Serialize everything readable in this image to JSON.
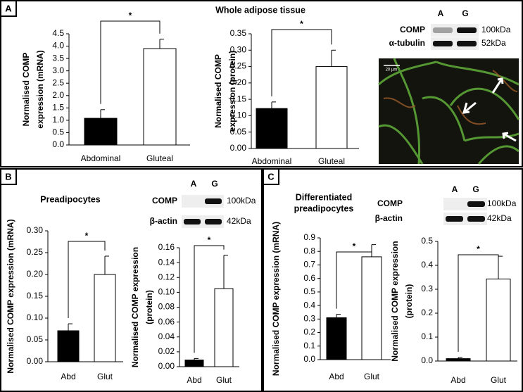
{
  "panels": [
    {
      "label": "A",
      "title": [
        "Whole adipose tissue"
      ],
      "blot": {
        "lanes": [
          "A",
          "G"
        ],
        "rows": [
          {
            "protein": "COMP",
            "size": "100kDa"
          },
          {
            "protein": "α-tubulin",
            "size": "52kDa"
          }
        ]
      },
      "scale_bar": "20 µm"
    },
    {
      "label": "B",
      "title": [
        "Preadipocytes"
      ],
      "blot": {
        "lanes": [
          "A",
          "G"
        ],
        "rows": [
          {
            "protein": "COMP",
            "size": "100kDa"
          },
          {
            "protein": "β-actin",
            "size": "42kDa"
          }
        ]
      }
    },
    {
      "label": "C",
      "title": [
        "Differentiated",
        "preadipocytes"
      ],
      "blot": {
        "lanes": [
          "A",
          "G"
        ],
        "rows": [
          {
            "protein": "COMP",
            "size": "100kDa"
          },
          {
            "protein": "β-actin",
            "size": "42kDa"
          }
        ]
      }
    }
  ],
  "chart_data": [
    {
      "type": "bar",
      "categories": [
        "Abdominal",
        "Gluteal"
      ],
      "values": [
        1.08,
        3.9
      ],
      "errors": [
        0.35,
        0.38
      ],
      "colors": [
        "#000000",
        "#ffffff"
      ],
      "ylabel": [
        "Normalised COMP",
        "expression (mRNA)"
      ],
      "annotation": "*",
      "ylim": [
        0,
        4.5
      ],
      "yticks": [
        {
          "value": 0,
          "label": "0.0"
        },
        0.5,
        {
          "value": 1,
          "label": "1.0"
        },
        1.5,
        {
          "value": 2,
          "label": "2.0"
        },
        2.5,
        {
          "value": 3,
          "label": "3.0"
        },
        3.5,
        {
          "value": 4,
          "label": "4.0"
        },
        4.5
      ]
    },
    {
      "type": "bar",
      "categories": [
        "Abdominal",
        "Gluteal"
      ],
      "values": [
        0.122,
        0.25
      ],
      "errors": [
        0.02,
        0.05
      ],
      "colors": [
        "#000000",
        "#ffffff"
      ],
      "ylabel": [
        "Normalised COMP",
        "expression (protein)"
      ],
      "annotation": "*",
      "ylim": [
        0,
        0.35
      ],
      "yticks": [
        {
          "value": 0,
          "label": "0.00"
        },
        0.05,
        {
          "value": 0.1,
          "label": "0.10"
        },
        0.15,
        {
          "value": 0.2,
          "label": "0.20"
        },
        0.25,
        {
          "value": 0.3,
          "label": "0.30"
        },
        0.35
      ]
    },
    {
      "type": "bar",
      "categories": [
        "Abd",
        "Glut"
      ],
      "values": [
        0.071,
        0.2
      ],
      "errors": [
        0.016,
        0.042
      ],
      "colors": [
        "#000000",
        "#ffffff"
      ],
      "ylabel": [
        "Normalised COMP expression (mRNA)"
      ],
      "annotation": "*",
      "ylim": [
        0,
        0.3
      ],
      "yticks": [
        {
          "value": 0,
          "label": "0.00"
        },
        0.05,
        {
          "value": 0.1,
          "label": "0.10"
        },
        0.15,
        {
          "value": 0.2,
          "label": "0.20"
        },
        0.25,
        {
          "value": 0.3,
          "label": "0.30"
        }
      ]
    },
    {
      "type": "bar",
      "categories": [
        "Abd",
        "Glut"
      ],
      "values": [
        0.009,
        0.105
      ],
      "errors": [
        0.002,
        0.045
      ],
      "colors": [
        "#000000",
        "#ffffff"
      ],
      "ylabel": [
        "Normalised COMP expression",
        "(protein)"
      ],
      "annotation": "*",
      "ylim": [
        0,
        0.16
      ],
      "yticks": [
        {
          "value": 0,
          "label": "0.00"
        },
        0.02,
        0.04,
        0.06,
        0.08,
        {
          "value": 0.1,
          "label": "0.10"
        },
        0.12,
        0.14,
        0.16
      ]
    },
    {
      "type": "bar",
      "categories": [
        "Abd",
        "Glut"
      ],
      "values": [
        0.31,
        0.76
      ],
      "errors": [
        0.025,
        0.09
      ],
      "colors": [
        "#000000",
        "#ffffff"
      ],
      "ylabel": [
        "Normalised COMP expression (mRNA)"
      ],
      "annotation": "*",
      "ylim": [
        0,
        0.9
      ],
      "yticks": [
        {
          "value": 0,
          "label": "0.0"
        },
        0.1,
        0.2,
        0.3,
        0.4,
        0.5,
        0.6,
        0.7,
        0.8,
        0.9
      ]
    },
    {
      "type": "bar",
      "categories": [
        "Abd",
        "Glut"
      ],
      "values": [
        0.01,
        0.343
      ],
      "errors": [
        0.005,
        0.095
      ],
      "colors": [
        "#000000",
        "#ffffff"
      ],
      "ylabel": [
        "Normalised COMP expression",
        "(protein)"
      ],
      "annotation": "*",
      "ylim": [
        0,
        0.5
      ],
      "yticks": [
        {
          "value": 0,
          "label": "0.0"
        },
        0.1,
        0.2,
        0.3,
        0.4,
        0.5
      ]
    }
  ]
}
